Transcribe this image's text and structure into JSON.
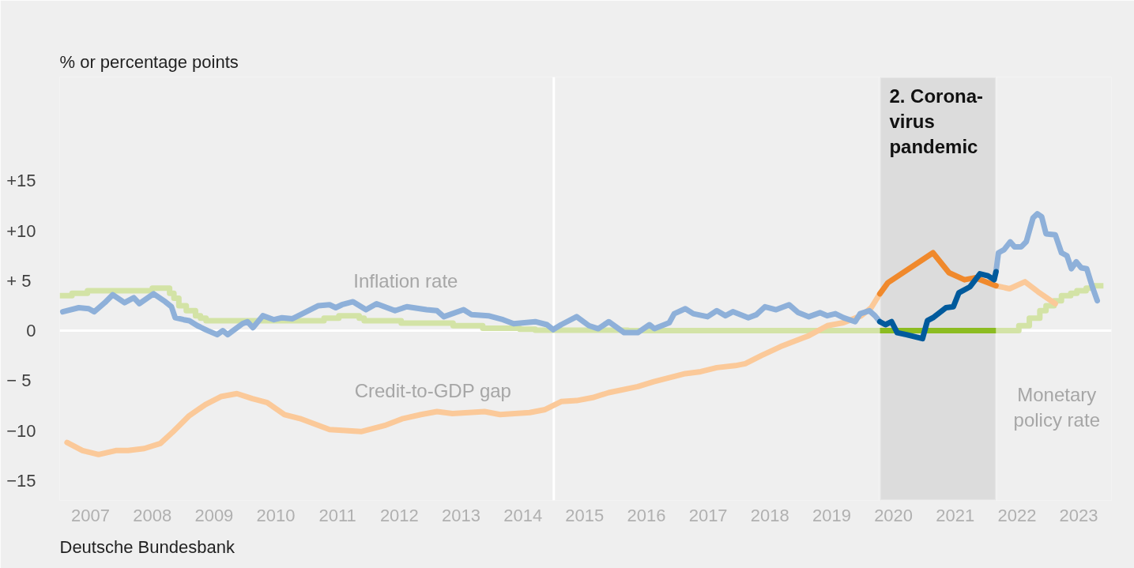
{
  "chart_data": {
    "type": "line",
    "ylabel": "% or percentage points",
    "xlim": [
      2007,
      2024.03
    ],
    "ylim": [
      -17,
      25.4
    ],
    "xticks": [
      {
        "value": 2007.5,
        "label": "2007"
      },
      {
        "value": 2008.5,
        "label": "2008"
      },
      {
        "value": 2009.5,
        "label": "2009"
      },
      {
        "value": 2010.5,
        "label": "2010"
      },
      {
        "value": 2011.5,
        "label": "2011"
      },
      {
        "value": 2012.5,
        "label": "2012"
      },
      {
        "value": 2013.5,
        "label": "2013"
      },
      {
        "value": 2014.5,
        "label": "2014"
      },
      {
        "value": 2015.5,
        "label": "2015"
      },
      {
        "value": 2016.5,
        "label": "2016"
      },
      {
        "value": 2017.5,
        "label": "2017"
      },
      {
        "value": 2018.5,
        "label": "2018"
      },
      {
        "value": 2019.5,
        "label": "2019"
      },
      {
        "value": 2020.5,
        "label": "2020"
      },
      {
        "value": 2021.5,
        "label": "2021"
      },
      {
        "value": 2022.5,
        "label": "2022"
      },
      {
        "value": 2023.5,
        "label": "2023"
      }
    ],
    "yticks": [
      {
        "value": -15,
        "label": "−15"
      },
      {
        "value": -10,
        "label": "−10"
      },
      {
        "value": -5,
        "label": "−  5"
      },
      0,
      {
        "value": 5,
        "label": "+  5"
      },
      {
        "value": 10,
        "label": "+10"
      },
      {
        "value": 15,
        "label": "+15"
      }
    ],
    "grid": false,
    "bands": [
      {
        "axis": "x",
        "from": 2020.28,
        "to": 2022.16,
        "label": "2. Corona-\nvirus\npandemic",
        "color": "#dcdcdc"
      }
    ],
    "ref_lines": [
      {
        "axis": "x",
        "value": 2015,
        "color": "#ffffff"
      },
      {
        "axis": "y",
        "value": 0,
        "color": "#ffffff"
      }
    ],
    "series": [
      {
        "type": "step",
        "color": "#d3e3a6",
        "x": [
          2007.0,
          2007.2,
          2007.45,
          2008.5,
          2008.78,
          2008.85,
          2008.93,
          2009.05,
          2009.2,
          2009.28,
          2009.37,
          2011.28,
          2011.52,
          2011.85,
          2011.93,
          2012.53,
          2013.37,
          2013.85,
          2014.45,
          2014.7,
          2016.2,
          2020.28,
          2021.0,
          2022.16,
          2022.53,
          2022.7,
          2022.87,
          2022.97,
          2023.1,
          2023.22,
          2023.37,
          2023.47,
          2023.62,
          2023.72,
          2023.9
        ],
        "values": [
          3.5,
          3.75,
          4.0,
          4.25,
          3.75,
          3.25,
          2.5,
          2.0,
          1.5,
          1.25,
          1.0,
          1.25,
          1.5,
          1.25,
          1.0,
          0.75,
          0.5,
          0.25,
          0.15,
          0.05,
          0,
          0,
          null,
          0,
          0.5,
          1.25,
          2.0,
          2.5,
          3.0,
          3.5,
          3.75,
          4.0,
          4.25,
          4.5,
          4.5
        ]
      },
      {
        "type": "step",
        "color": "#8cbc21",
        "x": [
          2020.28,
          2022.16
        ],
        "values": [
          0,
          0
        ]
      },
      {
        "type": "line",
        "color": "#fbc999",
        "x": [
          2007.12,
          2007.37,
          2007.63,
          2007.91,
          2008.11,
          2008.37,
          2008.63,
          2008.84,
          2009.1,
          2009.36,
          2009.61,
          2009.87,
          2010.12,
          2010.36,
          2010.64,
          2010.89,
          2011.37,
          2011.88,
          2012.26,
          2012.56,
          2012.85,
          2013.11,
          2013.36,
          2013.88,
          2014.13,
          2014.61,
          2014.86,
          2015.12,
          2015.37,
          2015.63,
          2015.89,
          2016.36,
          2016.62,
          2017.13,
          2017.38,
          2017.64,
          2017.94,
          2018.1,
          2018.36,
          2018.67,
          2019.13,
          2019.43,
          2019.69,
          2019.98,
          2020.14,
          2020.28,
          2021.0,
          2022.16,
          2022.38,
          2022.63,
          2022.84,
          2023.12
        ],
        "values": [
          -11.2,
          -12.0,
          -12.4,
          -12.0,
          -12.0,
          -11.8,
          -11.3,
          -10.1,
          -8.5,
          -7.4,
          -6.6,
          -6.3,
          -6.8,
          -7.2,
          -8.4,
          -8.8,
          -9.9,
          -10.1,
          -9.5,
          -8.8,
          -8.4,
          -8.1,
          -8.3,
          -8.1,
          -8.4,
          -8.2,
          -7.9,
          -7.1,
          -7.0,
          -6.7,
          -6.2,
          -5.6,
          -5.1,
          -4.3,
          -4.1,
          -3.7,
          -3.5,
          -3.3,
          -2.5,
          -1.6,
          -0.5,
          0.5,
          0.8,
          1.5,
          2.3,
          3.7,
          null,
          4.5,
          4.2,
          4.9,
          3.9,
          2.7
        ]
      },
      {
        "type": "line",
        "color": "#f0892c",
        "x": [
          2020.28,
          2020.41,
          2021.14,
          2021.4,
          2021.65,
          2021.82,
          2022.16
        ],
        "values": [
          3.7,
          4.8,
          7.8,
          5.8,
          5.1,
          5.3,
          4.5
        ]
      },
      {
        "type": "line",
        "color": "#8eb0d9",
        "x": [
          2007.05,
          2007.31,
          2007.47,
          2007.56,
          2007.73,
          2007.86,
          2008.05,
          2008.2,
          2008.29,
          2008.52,
          2008.71,
          2008.81,
          2008.87,
          2009.01,
          2009.1,
          2009.23,
          2009.4,
          2009.55,
          2009.64,
          2009.72,
          2009.96,
          2010.04,
          2010.13,
          2010.29,
          2010.47,
          2010.6,
          2010.77,
          2010.93,
          2011.19,
          2011.37,
          2011.47,
          2011.57,
          2011.75,
          2011.96,
          2012.13,
          2012.43,
          2012.62,
          2012.94,
          2013.11,
          2013.22,
          2013.54,
          2013.67,
          2013.94,
          2014.18,
          2014.35,
          2014.7,
          2014.89,
          2014.99,
          2015.12,
          2015.37,
          2015.57,
          2015.72,
          2015.89,
          2016.14,
          2016.36,
          2016.55,
          2016.63,
          2016.87,
          2016.95,
          2017.13,
          2017.26,
          2017.49,
          2017.64,
          2017.78,
          2017.9,
          2018.15,
          2018.28,
          2018.42,
          2018.6,
          2018.81,
          2018.96,
          2019.13,
          2019.31,
          2019.43,
          2019.56,
          2019.69,
          2019.88,
          2019.96,
          2020.11,
          2020.2,
          2020.28,
          2021.0,
          2022.16,
          2022.2,
          2022.29,
          2022.39,
          2022.46,
          2022.57,
          2022.65,
          2022.76,
          2022.83,
          2022.9,
          2022.97,
          2023.12,
          2023.22,
          2023.31,
          2023.38,
          2023.46,
          2023.54,
          2023.63,
          2023.72,
          2023.8
        ],
        "values": [
          1.9,
          2.3,
          2.2,
          1.9,
          2.8,
          3.6,
          2.8,
          3.3,
          2.7,
          3.7,
          2.9,
          2.4,
          1.3,
          1.1,
          1.0,
          0.5,
          0,
          -0.4,
          0,
          -0.4,
          0.7,
          0.9,
          0.3,
          1.5,
          1.1,
          1.3,
          1.2,
          1.7,
          2.5,
          2.6,
          2.3,
          2.6,
          2.9,
          2.1,
          2.7,
          2.0,
          2.4,
          2.1,
          2.0,
          1.4,
          2.1,
          1.6,
          1.5,
          1.1,
          0.7,
          0.9,
          0.6,
          0.1,
          0.6,
          1.4,
          0.5,
          0.2,
          0.9,
          -0.2,
          -0.2,
          0.6,
          0.2,
          0.8,
          1.7,
          2.2,
          1.7,
          1.4,
          2.0,
          1.5,
          1.9,
          1.3,
          1.6,
          2.4,
          2.1,
          2.6,
          1.8,
          1.4,
          1.8,
          1.5,
          1.7,
          1.3,
          0.9,
          1.7,
          2.0,
          1.5,
          0.9,
          null,
          5.9,
          7.8,
          8.1,
          8.9,
          8.4,
          8.4,
          8.9,
          11.3,
          11.7,
          11.4,
          9.7,
          9.6,
          7.8,
          7.5,
          6.2,
          6.9,
          6.3,
          6.2,
          4.4,
          3.0
        ]
      },
      {
        "type": "line",
        "color": "#005a9c",
        "x": [
          2020.28,
          2020.37,
          2020.47,
          2020.56,
          2020.71,
          2020.97,
          2021.05,
          2021.14,
          2021.35,
          2021.47,
          2021.56,
          2021.74,
          2021.9,
          2022.03,
          2022.13,
          2022.16
        ],
        "values": [
          0.9,
          0.6,
          0.9,
          -0.2,
          -0.4,
          -0.8,
          1.0,
          1.3,
          2.3,
          2.4,
          3.8,
          4.4,
          5.7,
          5.5,
          5.1,
          5.9
        ]
      }
    ],
    "annotations": [
      "Inflation rate",
      "Credit-to-GDP gap",
      "Monetary\npolicy rate",
      "Deutsche Bundesbank"
    ]
  }
}
